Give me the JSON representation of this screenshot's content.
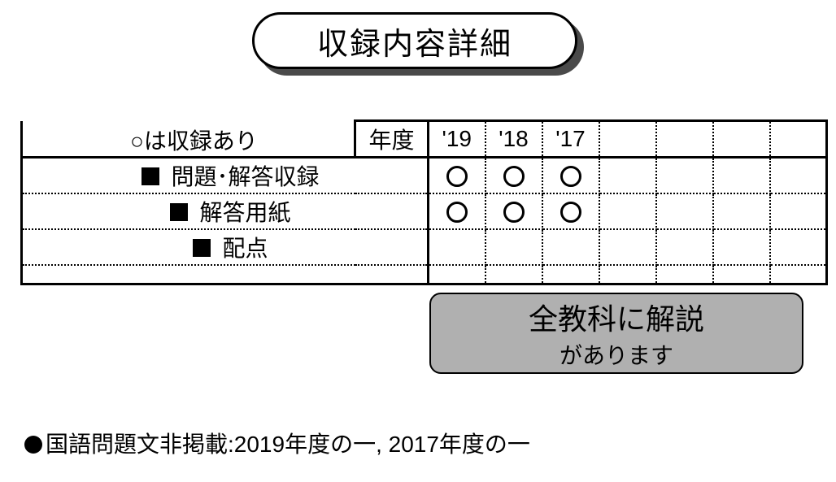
{
  "title": "収録内容詳細",
  "legend": "○は収録あり",
  "year_header": "年度",
  "years": [
    "'19",
    "'18",
    "'17",
    "",
    "",
    "",
    ""
  ],
  "rows": [
    {
      "label": "問題･解答収録",
      "marks": [
        true,
        true,
        true,
        false,
        false,
        false,
        false
      ]
    },
    {
      "label": "解答用紙",
      "marks": [
        true,
        true,
        true,
        false,
        false,
        false,
        false
      ]
    },
    {
      "label": "配点",
      "marks": [
        false,
        false,
        false,
        false,
        false,
        false,
        false
      ]
    }
  ],
  "note": {
    "line1": "全教科に解説",
    "line2": "があります"
  },
  "footnote": "国語問題文非掲載:2019年度の一, 2017年度の一",
  "style": {
    "page_bg": "#ffffff",
    "badge_shadow": "#4a4a4a",
    "note_bg": "#b0b0b0",
    "border_color": "#000000",
    "title_fontsize": 38,
    "body_fontsize": 28,
    "note_line1_fontsize": 36,
    "year_col_width": 70,
    "label_col_width": 410,
    "circle_diam": 26,
    "square_size": 22
  }
}
